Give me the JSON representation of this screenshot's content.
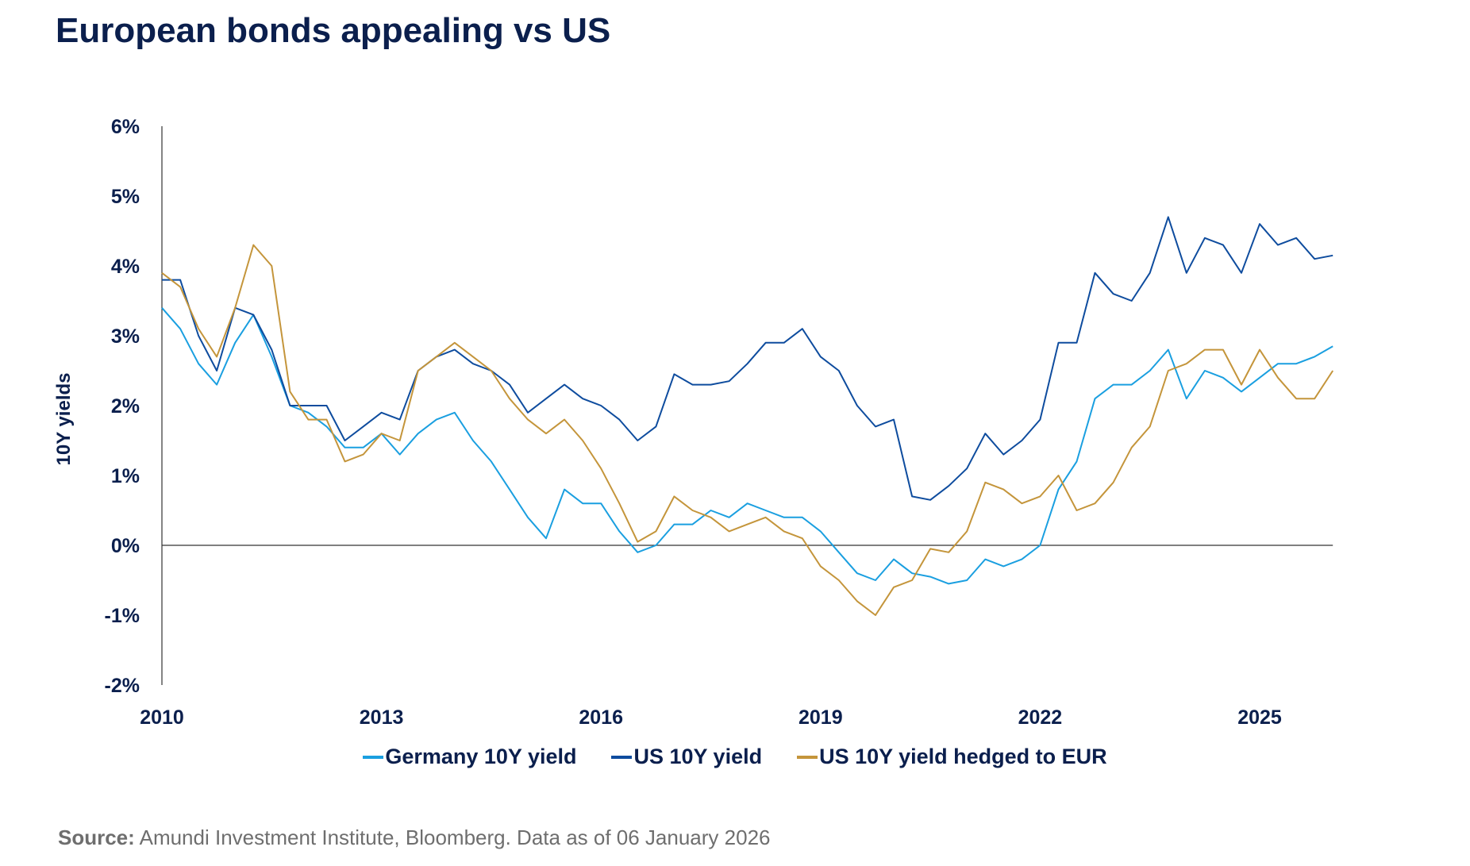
{
  "title": "European bonds appealing vs US",
  "source_label": "Source:",
  "source_text": " Amundi Investment Institute, Bloomberg. Data as of 06 January 2026",
  "chart_data": {
    "type": "line",
    "title": "European bonds appealing vs US",
    "xlabel": "",
    "ylabel": "10Y yields",
    "xlim": [
      "2010-01",
      "2026-01"
    ],
    "ylim": [
      -2,
      6
    ],
    "x_ticks": [
      "2010",
      "2013",
      "2016",
      "2019",
      "2022",
      "2025"
    ],
    "y_ticks": [
      "6%",
      "5%",
      "4%",
      "3%",
      "2%",
      "1%",
      "0%",
      "-1%",
      "-2%"
    ],
    "y_tick_values": [
      6,
      5,
      4,
      3,
      2,
      1,
      0,
      -1,
      -2
    ],
    "zero_line": true,
    "grid": false,
    "legend_position": "bottom",
    "x": [
      "2010-01",
      "2010-04",
      "2010-07",
      "2010-10",
      "2011-01",
      "2011-04",
      "2011-07",
      "2011-10",
      "2012-01",
      "2012-04",
      "2012-07",
      "2012-10",
      "2013-01",
      "2013-04",
      "2013-07",
      "2013-10",
      "2014-01",
      "2014-04",
      "2014-07",
      "2014-10",
      "2015-01",
      "2015-04",
      "2015-07",
      "2015-10",
      "2016-01",
      "2016-04",
      "2016-07",
      "2016-10",
      "2017-01",
      "2017-04",
      "2017-07",
      "2017-10",
      "2018-01",
      "2018-04",
      "2018-07",
      "2018-10",
      "2019-01",
      "2019-04",
      "2019-07",
      "2019-10",
      "2020-01",
      "2020-04",
      "2020-07",
      "2020-10",
      "2021-01",
      "2021-04",
      "2021-07",
      "2021-10",
      "2022-01",
      "2022-04",
      "2022-07",
      "2022-10",
      "2023-01",
      "2023-04",
      "2023-07",
      "2023-10",
      "2024-01",
      "2024-04",
      "2024-07",
      "2024-10",
      "2025-01",
      "2025-04",
      "2025-07",
      "2025-10",
      "2026-01"
    ],
    "series": [
      {
        "name": "Germany 10Y yield",
        "color": "#1a9fe0",
        "values": [
          3.4,
          3.1,
          2.6,
          2.3,
          2.9,
          3.3,
          2.7,
          2.0,
          1.9,
          1.7,
          1.4,
          1.4,
          1.6,
          1.3,
          1.6,
          1.8,
          1.9,
          1.5,
          1.2,
          0.8,
          0.4,
          0.1,
          0.8,
          0.6,
          0.6,
          0.2,
          -0.1,
          0.0,
          0.3,
          0.3,
          0.5,
          0.4,
          0.6,
          0.5,
          0.4,
          0.4,
          0.2,
          -0.1,
          -0.4,
          -0.5,
          -0.2,
          -0.4,
          -0.45,
          -0.55,
          -0.5,
          -0.2,
          -0.3,
          -0.2,
          0.0,
          0.8,
          1.2,
          2.1,
          2.3,
          2.3,
          2.5,
          2.8,
          2.1,
          2.5,
          2.4,
          2.2,
          2.4,
          2.6,
          2.6,
          2.7,
          2.85
        ]
      },
      {
        "name": "US 10Y yield",
        "color": "#0e4c9e",
        "values": [
          3.8,
          3.8,
          3.0,
          2.5,
          3.4,
          3.3,
          2.8,
          2.0,
          2.0,
          2.0,
          1.5,
          1.7,
          1.9,
          1.8,
          2.5,
          2.7,
          2.8,
          2.6,
          2.5,
          2.3,
          1.9,
          2.1,
          2.3,
          2.1,
          2.0,
          1.8,
          1.5,
          1.7,
          2.45,
          2.3,
          2.3,
          2.35,
          2.6,
          2.9,
          2.9,
          3.1,
          2.7,
          2.5,
          2.0,
          1.7,
          1.8,
          0.7,
          0.65,
          0.85,
          1.1,
          1.6,
          1.3,
          1.5,
          1.8,
          2.9,
          2.9,
          3.9,
          3.6,
          3.5,
          3.9,
          4.7,
          3.9,
          4.4,
          4.3,
          3.9,
          4.6,
          4.3,
          4.4,
          4.1,
          4.15
        ]
      },
      {
        "name": "US 10Y yield hedged to EUR",
        "color": "#c4953b",
        "values": [
          3.9,
          3.7,
          3.1,
          2.7,
          3.4,
          4.3,
          4.0,
          2.2,
          1.8,
          1.8,
          1.2,
          1.3,
          1.6,
          1.5,
          2.5,
          2.7,
          2.9,
          2.7,
          2.5,
          2.1,
          1.8,
          1.6,
          1.8,
          1.5,
          1.1,
          0.6,
          0.05,
          0.2,
          0.7,
          0.5,
          0.4,
          0.2,
          0.3,
          0.4,
          0.2,
          0.1,
          -0.3,
          -0.5,
          -0.8,
          -1.0,
          -0.6,
          -0.5,
          -0.05,
          -0.1,
          0.2,
          0.9,
          0.8,
          0.6,
          0.7,
          1.0,
          0.5,
          0.6,
          0.9,
          1.4,
          1.7,
          2.5,
          2.6,
          2.8,
          2.8,
          2.3,
          2.8,
          2.4,
          2.1,
          2.1,
          2.5
        ]
      }
    ]
  }
}
